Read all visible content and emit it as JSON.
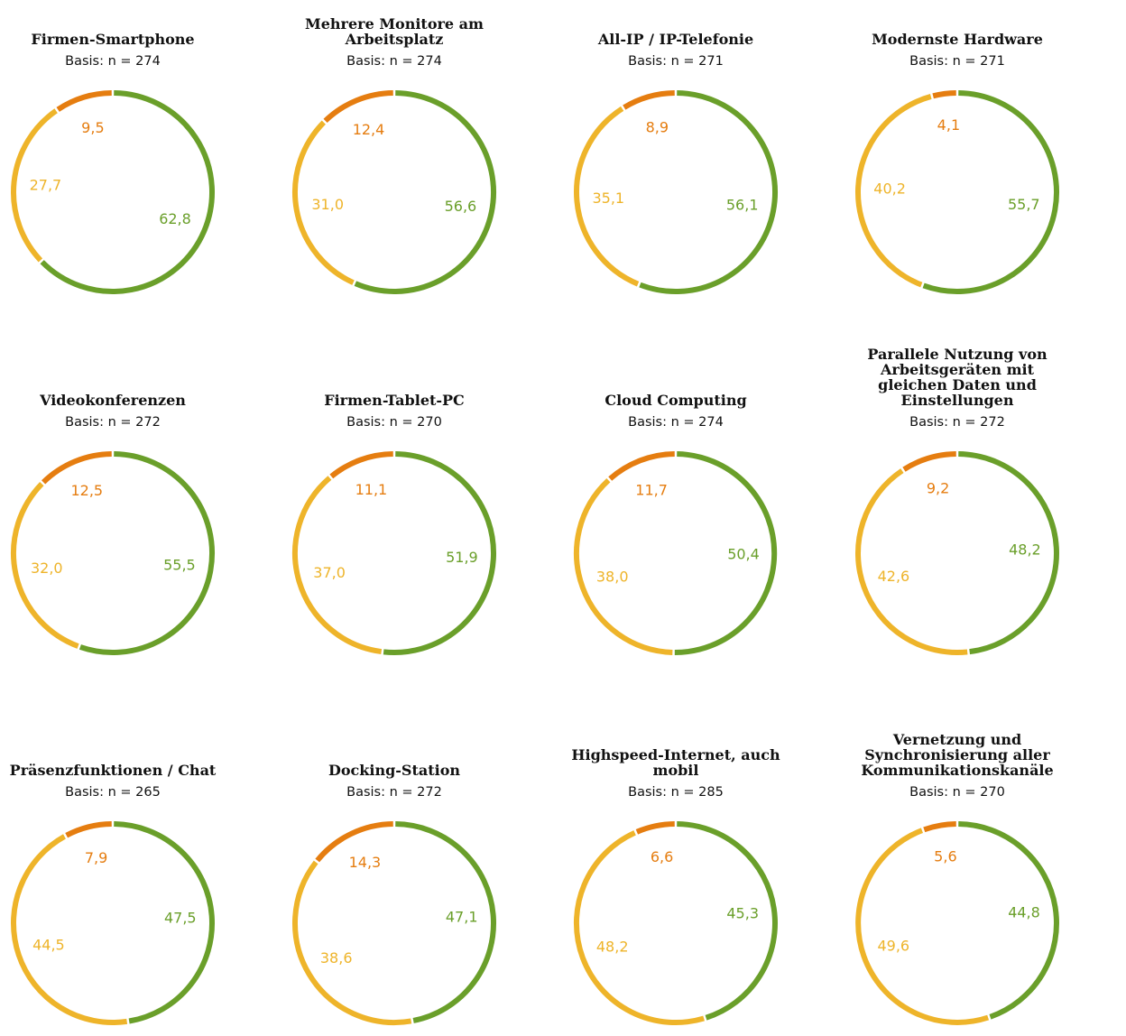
{
  "colors": {
    "green": "#6a9f2a",
    "yellow": "#eeb42a",
    "orange": "#e57d10"
  },
  "chart_data": [
    {
      "type": "pie",
      "title": "Firmen-Smartphone",
      "basis": "Basis: n = 274",
      "slices": [
        {
          "value": 62.8,
          "label": "62,8",
          "color": "green"
        },
        {
          "value": 27.7,
          "label": "27,7",
          "color": "yellow"
        },
        {
          "value": 9.5,
          "label": "9,5",
          "color": "orange"
        }
      ]
    },
    {
      "type": "pie",
      "title": "Mehrere Monitore am Arbeitsplatz",
      "basis": "Basis: n = 274",
      "slices": [
        {
          "value": 56.6,
          "label": "56,6",
          "color": "green"
        },
        {
          "value": 31.0,
          "label": "31,0",
          "color": "yellow"
        },
        {
          "value": 12.4,
          "label": "12,4",
          "color": "orange"
        }
      ]
    },
    {
      "type": "pie",
      "title": "All-IP / IP-Telefonie",
      "basis": "Basis: n = 271",
      "slices": [
        {
          "value": 56.1,
          "label": "56,1",
          "color": "green"
        },
        {
          "value": 35.1,
          "label": "35,1",
          "color": "yellow"
        },
        {
          "value": 8.9,
          "label": "8,9",
          "color": "orange"
        }
      ]
    },
    {
      "type": "pie",
      "title": "Modernste Hardware",
      "basis": "Basis: n = 271",
      "slices": [
        {
          "value": 55.7,
          "label": "55,7",
          "color": "green"
        },
        {
          "value": 40.2,
          "label": "40,2",
          "color": "yellow"
        },
        {
          "value": 4.1,
          "label": "4,1",
          "color": "orange"
        }
      ]
    },
    {
      "type": "pie",
      "title": "Videokonferenzen",
      "basis": "Basis: n = 272",
      "slices": [
        {
          "value": 55.5,
          "label": "55,5",
          "color": "green"
        },
        {
          "value": 32.0,
          "label": "32,0",
          "color": "yellow"
        },
        {
          "value": 12.5,
          "label": "12,5",
          "color": "orange"
        }
      ]
    },
    {
      "type": "pie",
      "title": "Firmen-Tablet-PC",
      "basis": "Basis: n = 270",
      "slices": [
        {
          "value": 51.9,
          "label": "51,9",
          "color": "green"
        },
        {
          "value": 37.0,
          "label": "37,0",
          "color": "yellow"
        },
        {
          "value": 11.1,
          "label": "11,1",
          "color": "orange"
        }
      ]
    },
    {
      "type": "pie",
      "title": "Cloud Computing",
      "basis": "Basis: n = 274",
      "slices": [
        {
          "value": 50.4,
          "label": "50,4",
          "color": "green"
        },
        {
          "value": 38.0,
          "label": "38,0",
          "color": "yellow"
        },
        {
          "value": 11.7,
          "label": "11,7",
          "color": "orange"
        }
      ]
    },
    {
      "type": "pie",
      "title": "Parallele Nutzung von Arbeitsgeräten mit gleichen Daten und Einstellungen",
      "basis": "Basis: n = 272",
      "slices": [
        {
          "value": 48.2,
          "label": "48,2",
          "color": "green"
        },
        {
          "value": 42.6,
          "label": "42,6",
          "color": "yellow"
        },
        {
          "value": 9.2,
          "label": "9,2",
          "color": "orange"
        }
      ]
    },
    {
      "type": "pie",
      "title": "Präsenzfunktionen / Chat",
      "basis": "Basis: n = 265",
      "slices": [
        {
          "value": 47.5,
          "label": "47,5",
          "color": "green"
        },
        {
          "value": 44.5,
          "label": "44,5",
          "color": "yellow"
        },
        {
          "value": 7.9,
          "label": "7,9",
          "color": "orange"
        }
      ]
    },
    {
      "type": "pie",
      "title": "Docking-Station",
      "basis": "Basis: n = 272",
      "slices": [
        {
          "value": 47.1,
          "label": "47,1",
          "color": "green"
        },
        {
          "value": 38.6,
          "label": "38,6",
          "color": "yellow"
        },
        {
          "value": 14.3,
          "label": "14,3",
          "color": "orange"
        }
      ]
    },
    {
      "type": "pie",
      "title": "Highspeed-Internet, auch mobil",
      "basis": "Basis: n = 285",
      "slices": [
        {
          "value": 45.3,
          "label": "45,3",
          "color": "green"
        },
        {
          "value": 48.2,
          "label": "48,2",
          "color": "yellow"
        },
        {
          "value": 6.6,
          "label": "6,6",
          "color": "orange"
        }
      ]
    },
    {
      "type": "pie",
      "title": "Vernetzung und Synchronisierung aller Kommunikationskanäle",
      "basis": "Basis: n = 270",
      "slices": [
        {
          "value": 44.8,
          "label": "44,8",
          "color": "green"
        },
        {
          "value": 49.6,
          "label": "49,6",
          "color": "yellow"
        },
        {
          "value": 5.6,
          "label": "5,6",
          "color": "orange"
        }
      ]
    }
  ]
}
